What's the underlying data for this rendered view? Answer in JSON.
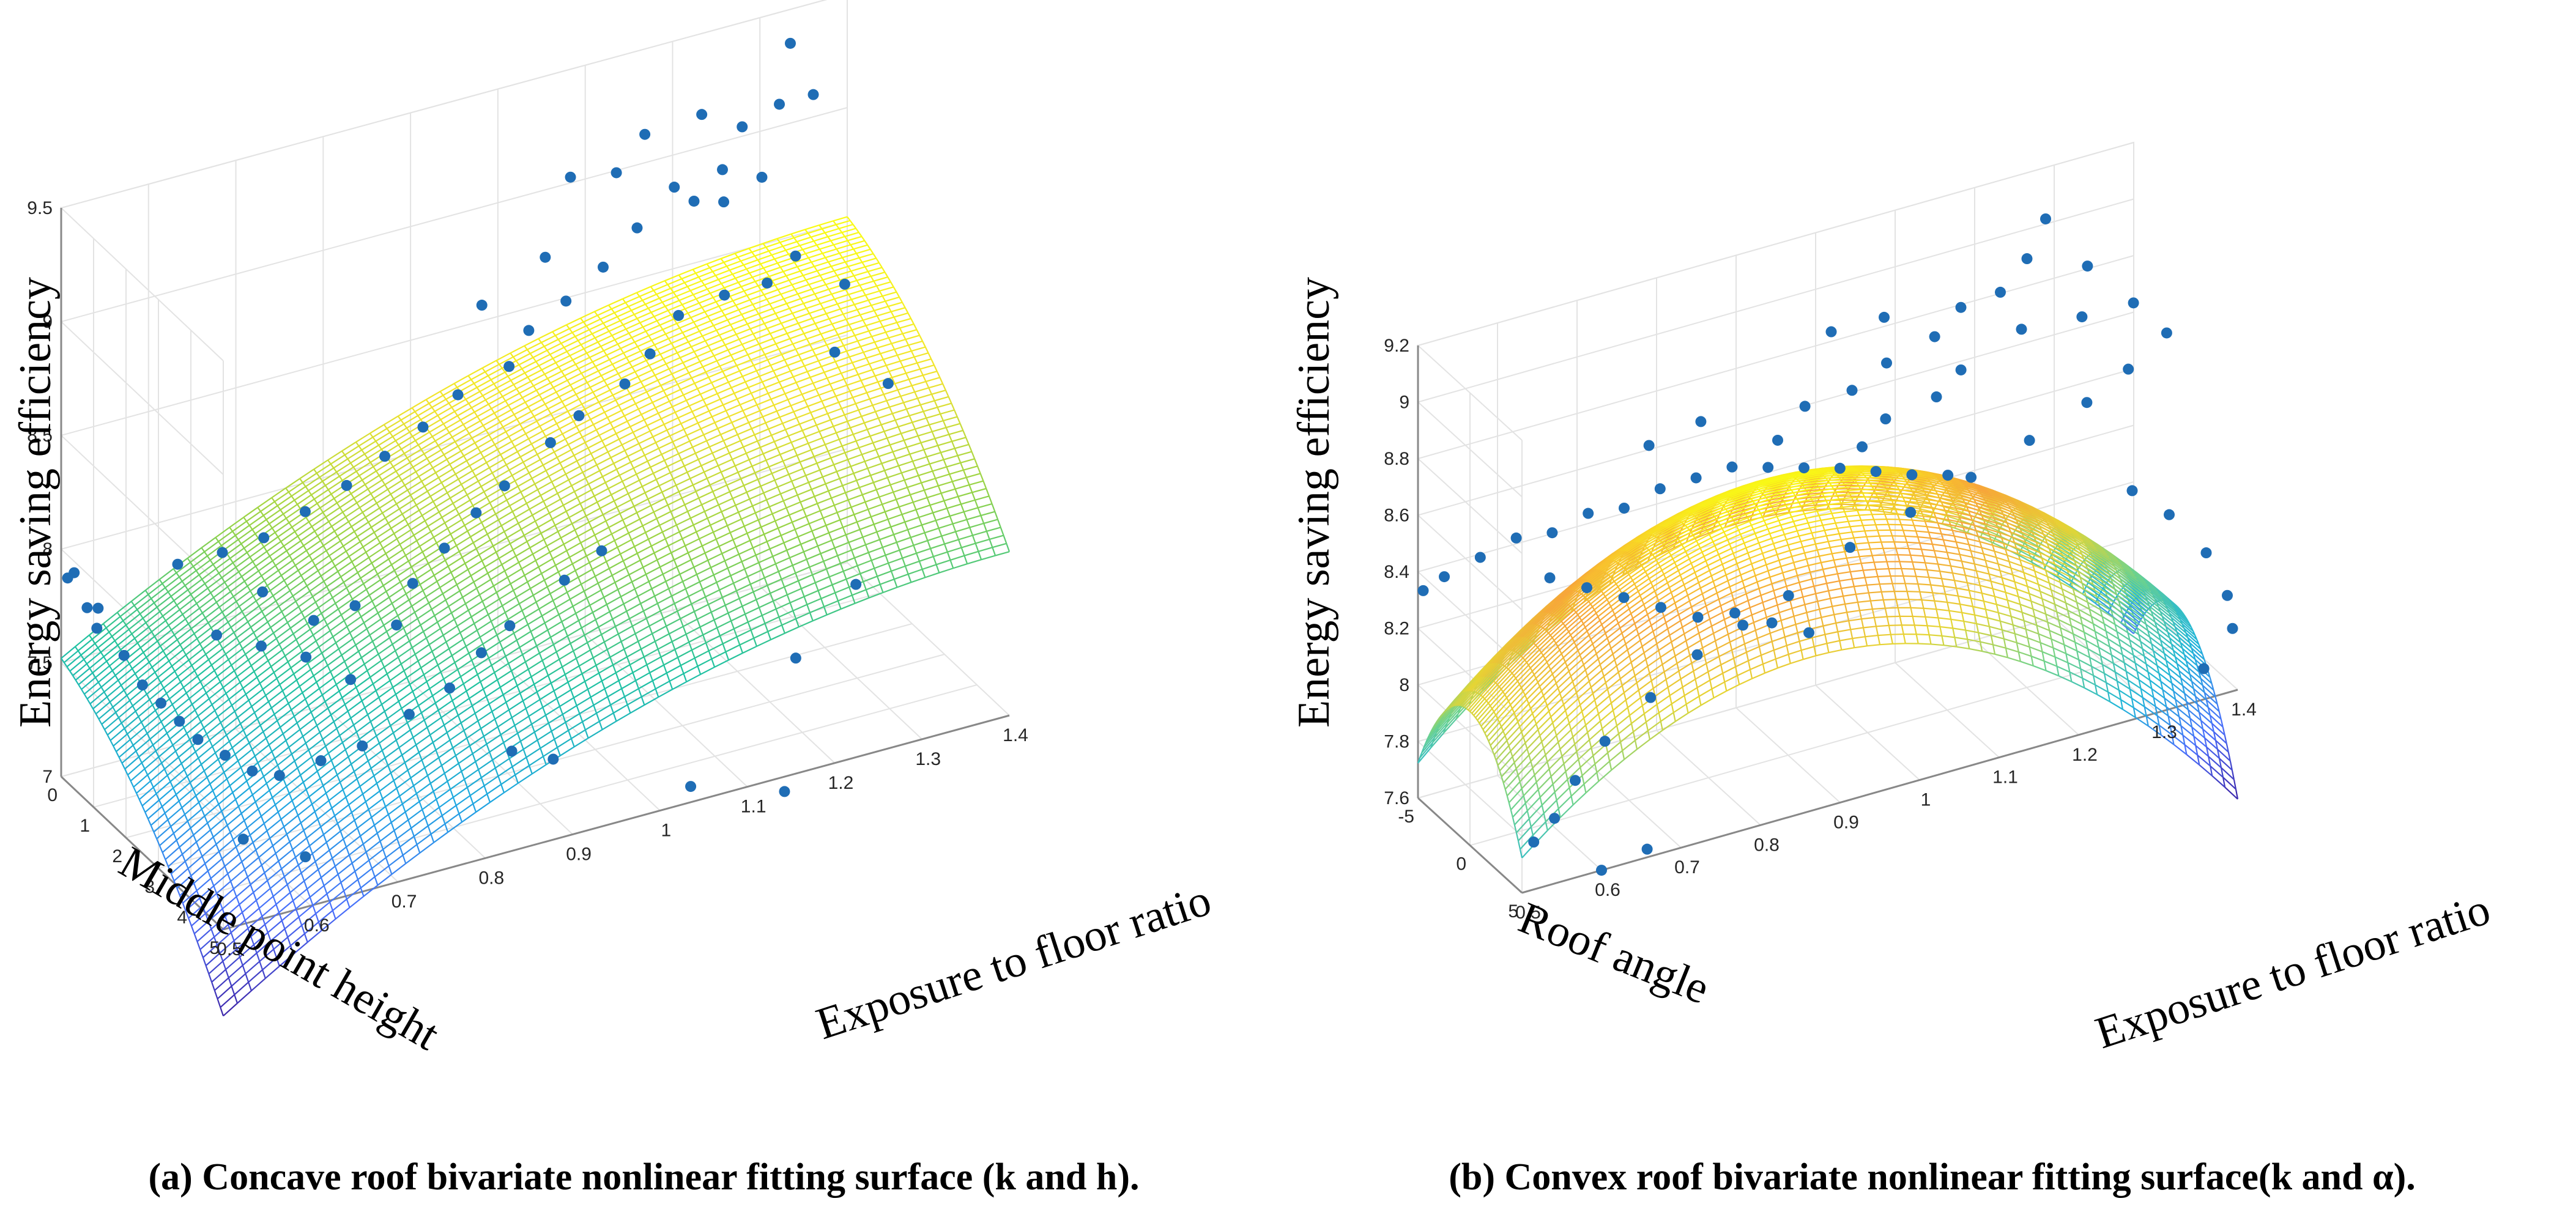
{
  "chart_data": [
    {
      "type": "surface3d",
      "id": "a",
      "title": "",
      "zlabel": "Energy saving efficiency",
      "ylabel": "Middle point height",
      "xlabel": "Exposure to floor ratio",
      "z_ticks": [
        "7",
        "7.5",
        "8",
        "8.5",
        "9",
        "9.5"
      ],
      "y_ticks": [
        "0",
        "1",
        "2",
        "3",
        "4",
        "5"
      ],
      "x_ticks": [
        "0.5",
        "0.6",
        "0.7",
        "0.8",
        "0.9",
        "1",
        "1.1",
        "1.2",
        "1.3",
        "1.4"
      ],
      "xlim": [
        0.5,
        1.4
      ],
      "ylim": [
        0,
        5
      ],
      "zlim": [
        7,
        9.5
      ],
      "surface_fit": {
        "model": "quadratic",
        "corner_values": {
          "k0.5_h0": 7.52,
          "k0.5_h5": 6.35,
          "k1.4_h0": 8.78,
          "k1.4_h5": 6.95
        },
        "peak_value": 8.95
      },
      "scatter_points": [
        [
          1.32,
          0.4,
          9.42
        ],
        [
          1.3,
          0.6,
          9.2
        ],
        [
          1.35,
          0.3,
          9.15
        ],
        [
          1.25,
          0.8,
          9.18
        ],
        [
          1.22,
          1.0,
          9.05
        ],
        [
          1.18,
          1.2,
          8.98
        ],
        [
          1.2,
          0.9,
          9.3
        ],
        [
          1.15,
          1.4,
          9.1
        ],
        [
          1.1,
          1.6,
          9.0
        ],
        [
          1.12,
          1.3,
          9.35
        ],
        [
          1.05,
          1.9,
          8.92
        ],
        [
          1.08,
          1.5,
          9.25
        ],
        [
          1.0,
          2.1,
          8.85
        ],
        [
          0.98,
          2.0,
          9.05
        ],
        [
          1.02,
          1.7,
          9.32
        ],
        [
          0.95,
          2.3,
          8.8
        ],
        [
          0.92,
          2.5,
          8.7
        ],
        [
          0.9,
          2.2,
          8.95
        ],
        [
          1.28,
          0.6,
          8.9
        ],
        [
          1.24,
          0.5,
          8.82
        ],
        [
          1.3,
          1.1,
          8.6
        ],
        [
          1.26,
          1.3,
          8.55
        ],
        [
          1.2,
          1.6,
          8.6
        ],
        [
          1.14,
          1.8,
          8.6
        ],
        [
          1.1,
          2.0,
          8.5
        ],
        [
          1.06,
          2.3,
          8.45
        ],
        [
          1.0,
          2.5,
          8.4
        ],
        [
          0.96,
          2.7,
          8.35
        ],
        [
          0.9,
          2.9,
          8.25
        ],
        [
          0.86,
          3.1,
          8.2
        ],
        [
          0.82,
          3.2,
          8.1
        ],
        [
          0.78,
          3.3,
          8.0
        ],
        [
          1.33,
          1.5,
          8.2
        ],
        [
          1.36,
          1.0,
          8.4
        ],
        [
          1.38,
          1.8,
          8.05
        ],
        [
          1.0,
          3.2,
          7.9
        ],
        [
          0.95,
          3.4,
          7.85
        ],
        [
          0.88,
          3.6,
          7.75
        ],
        [
          0.84,
          3.8,
          7.7
        ],
        [
          0.8,
          3.9,
          7.6
        ],
        [
          0.75,
          4.0,
          7.55
        ],
        [
          0.7,
          3.9,
          7.45
        ],
        [
          0.66,
          3.7,
          7.4
        ],
        [
          0.62,
          3.5,
          7.35
        ],
        [
          0.6,
          3.2,
          7.35
        ],
        [
          0.58,
          2.9,
          7.4
        ],
        [
          0.56,
          2.6,
          7.45
        ],
        [
          0.55,
          2.3,
          7.5
        ],
        [
          0.54,
          2.0,
          7.55
        ],
        [
          0.53,
          1.7,
          7.6
        ],
        [
          0.52,
          1.4,
          7.7
        ],
        [
          0.5,
          1.1,
          7.8
        ],
        [
          0.5,
          0.8,
          7.85
        ],
        [
          0.5,
          0.4,
          7.95
        ],
        [
          0.5,
          0.2,
          7.9
        ],
        [
          0.52,
          0.6,
          7.8
        ],
        [
          0.6,
          0.9,
          7.95
        ],
        [
          0.64,
          1.2,
          8.0
        ],
        [
          0.68,
          1.4,
          8.05
        ],
        [
          0.72,
          1.6,
          8.15
        ],
        [
          0.76,
          1.8,
          8.25
        ],
        [
          0.8,
          1.9,
          8.35
        ],
        [
          0.84,
          2.0,
          8.45
        ],
        [
          0.88,
          2.0,
          8.55
        ],
        [
          0.7,
          2.4,
          7.8
        ],
        [
          0.74,
          2.6,
          7.85
        ],
        [
          0.78,
          2.8,
          7.75
        ],
        [
          0.72,
          3.0,
          7.6
        ],
        [
          0.68,
          2.7,
          7.7
        ],
        [
          0.64,
          2.4,
          7.75
        ],
        [
          0.6,
          2.1,
          7.8
        ],
        [
          0.66,
          1.9,
          7.9
        ],
        [
          0.86,
          4.2,
          7.3
        ],
        [
          0.9,
          4.4,
          7.25
        ],
        [
          1.05,
          4.6,
          7.0
        ],
        [
          1.15,
          4.8,
          6.9
        ],
        [
          0.62,
          4.3,
          7.1
        ],
        [
          0.56,
          4.0,
          7.2
        ],
        [
          1.2,
          3.8,
          7.3
        ],
        [
          1.28,
          3.5,
          7.5
        ]
      ]
    },
    {
      "type": "surface3d",
      "id": "b",
      "title": "",
      "zlabel": "Energy saving efficiency",
      "ylabel": "Roof angle",
      "xlabel": "Exposure to floor ratio",
      "z_ticks": [
        "7.6",
        "7.8",
        "8",
        "8.2",
        "8.4",
        "8.6",
        "8.8",
        "9",
        "9.2"
      ],
      "y_ticks": [
        "-5",
        "0",
        "5"
      ],
      "x_ticks": [
        "0.5",
        "0.6",
        "0.7",
        "0.8",
        "0.9",
        "1",
        "1.1",
        "1.2",
        "1.3",
        "1.4"
      ],
      "xlim": [
        0.5,
        1.4
      ],
      "ylim": [
        -5,
        5
      ],
      "zlim": [
        7.6,
        9.2
      ],
      "surface_fit": {
        "model": "quadratic",
        "peak_value": 8.6
      },
      "scatter_points": [
        [
          1.25,
          -2.0,
          9.15
        ],
        [
          1.22,
          -1.5,
          9.05
        ],
        [
          1.18,
          -1.0,
          8.98
        ],
        [
          1.3,
          -1.8,
          8.95
        ],
        [
          1.15,
          -2.5,
          8.9
        ],
        [
          1.1,
          -1.2,
          8.88
        ],
        [
          1.2,
          -0.5,
          8.85
        ],
        [
          1.28,
          -0.8,
          8.82
        ],
        [
          1.05,
          -2.0,
          8.8
        ],
        [
          1.12,
          -0.2,
          8.78
        ],
        [
          1.0,
          -1.5,
          8.76
        ],
        [
          1.08,
          0.5,
          8.74
        ],
        [
          0.95,
          -2.2,
          8.72
        ],
        [
          1.02,
          0.2,
          8.7
        ],
        [
          0.9,
          -1.0,
          8.68
        ],
        [
          0.98,
          1.0,
          8.66
        ],
        [
          1.35,
          -1.2,
          8.8
        ],
        [
          1.38,
          -0.3,
          8.7
        ],
        [
          1.32,
          0.6,
          8.65
        ],
        [
          1.26,
          1.2,
          8.6
        ],
        [
          1.18,
          1.8,
          8.55
        ],
        [
          1.1,
          2.3,
          8.5
        ],
        [
          1.02,
          2.6,
          8.45
        ],
        [
          0.94,
          2.9,
          8.4
        ],
        [
          0.86,
          3.1,
          8.3
        ],
        [
          0.8,
          3.3,
          8.25
        ],
        [
          0.74,
          3.5,
          8.2
        ],
        [
          0.68,
          3.6,
          8.1
        ],
        [
          0.62,
          3.8,
          8.0
        ],
        [
          0.58,
          4.0,
          7.9
        ],
        [
          0.55,
          4.3,
          7.8
        ],
        [
          0.52,
          4.6,
          7.75
        ],
        [
          0.5,
          -4.5,
          8.35
        ],
        [
          0.52,
          -4.0,
          8.4
        ],
        [
          0.56,
          -3.6,
          8.45
        ],
        [
          0.6,
          -3.2,
          8.5
        ],
        [
          0.64,
          -2.8,
          8.5
        ],
        [
          0.68,
          -2.4,
          8.55
        ],
        [
          0.72,
          -2.0,
          8.55
        ],
        [
          0.76,
          -1.6,
          8.6
        ],
        [
          0.8,
          -1.2,
          8.62
        ],
        [
          0.84,
          -0.8,
          8.64
        ],
        [
          0.88,
          -0.4,
          8.62
        ],
        [
          0.92,
          0.0,
          8.6
        ],
        [
          0.96,
          0.4,
          8.58
        ],
        [
          1.0,
          0.8,
          8.55
        ],
        [
          1.04,
          1.2,
          8.52
        ],
        [
          1.08,
          1.6,
          8.5
        ],
        [
          0.7,
          -0.5,
          8.3
        ],
        [
          0.74,
          0.0,
          8.25
        ],
        [
          0.78,
          0.5,
          8.2
        ],
        [
          0.82,
          1.0,
          8.2
        ],
        [
          0.86,
          1.5,
          8.15
        ],
        [
          0.9,
          2.0,
          8.1
        ],
        [
          0.66,
          -1.0,
          8.35
        ],
        [
          0.62,
          -1.5,
          8.4
        ],
        [
          1.3,
          2.5,
          8.3
        ],
        [
          1.34,
          3.0,
          8.2
        ],
        [
          1.38,
          3.5,
          8.05
        ],
        [
          1.4,
          4.0,
          7.9
        ],
        [
          1.4,
          4.5,
          7.8
        ],
        [
          1.36,
          4.8,
          7.7
        ],
        [
          0.6,
          5.0,
          7.6
        ],
        [
          0.66,
          4.8,
          7.62
        ],
        [
          1.0,
          -3.5,
          8.9
        ],
        [
          1.06,
          -3.0,
          8.92
        ],
        [
          0.84,
          -3.8,
          8.7
        ],
        [
          0.78,
          -4.2,
          8.65
        ]
      ]
    }
  ],
  "captions": {
    "a": "(a) Concave roof bivariate nonlinear fitting surface (k and h).",
    "b": "(b) Convex roof bivariate nonlinear fitting surface(k and α)."
  },
  "colors": {
    "scatter": "#1f6db5",
    "grid": "#e3e3e3",
    "axis": "#888888",
    "colormap": [
      "#3e26a8",
      "#4a6ffb",
      "#1fa8e0",
      "#20c2a0",
      "#8fd24a",
      "#f0e22e",
      "#f9fb15"
    ],
    "colormap_b": [
      "#3e26a8",
      "#4a6ffb",
      "#20b6d8",
      "#6fd38c",
      "#e6d534",
      "#f7a53a",
      "#f9fb15"
    ]
  }
}
